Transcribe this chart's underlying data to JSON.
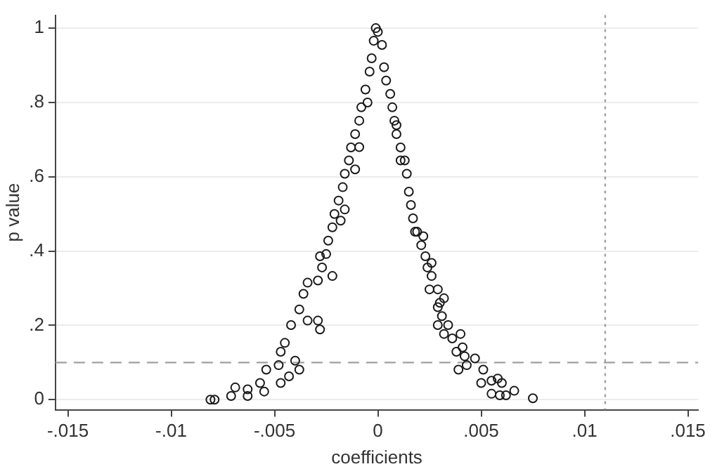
{
  "chart_data": {
    "type": "scatter",
    "xlabel": "coefficients",
    "ylabel": "p value",
    "marker": "circle",
    "grid": "y",
    "legend": false,
    "xlim": [
      -0.0156,
      0.0155
    ],
    "ylim": [
      -0.027,
      1.035
    ],
    "xticks": [
      {
        "value": -0.015,
        "label": "-.015"
      },
      {
        "value": -0.01,
        "label": "-.01"
      },
      {
        "value": -0.005,
        "label": "-.005"
      },
      0,
      {
        "value": 0.005,
        "label": ".005"
      },
      {
        "value": 0.01,
        "label": ".01"
      },
      {
        "value": 0.015,
        "label": ".015"
      }
    ],
    "yticks": [
      0,
      {
        "value": 0.2,
        "label": ".2"
      },
      {
        "value": 0.4,
        "label": ".4"
      },
      {
        "value": 0.6,
        "label": ".6"
      },
      {
        "value": 0.8,
        "label": ".8"
      },
      1
    ],
    "ref_lines": [
      {
        "axis": "y",
        "value": 0.1,
        "color": "#a0a0a0",
        "line_style": "dashed"
      },
      {
        "axis": "x",
        "value": 0.011,
        "color": "#a0a0a0",
        "line_style": "dotted"
      }
    ],
    "series": [
      {
        "color": "#1a1a1a",
        "x": [
          -0.0001,
          -0.0002,
          -0.0003,
          -0.0004,
          -0.0006,
          -0.0008,
          -0.0009,
          -0.0011,
          -0.0013,
          -0.0014,
          -0.0016,
          -0.0017,
          -0.0019,
          -0.0021,
          -0.0022,
          -0.0024,
          -0.0025,
          -0.0027,
          -0.0029,
          -0.0034,
          -0.0036,
          -0.0038,
          -0.0034,
          -0.0042,
          -0.0045,
          -0.0047,
          -0.0048,
          -0.0054,
          -0.0057,
          -0.0063,
          -0.0069,
          -0.0071,
          -0.0079,
          -0.0081,
          -0.0016,
          -0.0018,
          -0.0028,
          -0.0022,
          -0.0029,
          -0.0028,
          -0.004,
          -0.0043,
          -0.0038,
          -0.0047,
          -0.0055,
          -0.0063,
          -0.0011,
          -0.0009,
          -0.0005,
          0.0,
          0.0002,
          0.0003,
          0.0004,
          0.0006,
          0.0007,
          0.0008,
          0.0009,
          0.0011,
          0.0013,
          0.0014,
          0.0015,
          0.0016,
          0.0017,
          0.0018,
          0.0021,
          0.0023,
          0.0024,
          0.0026,
          0.0029,
          0.003,
          0.0031,
          0.0029,
          0.0034,
          0.0036,
          0.0041,
          0.0042,
          0.0047,
          0.0039,
          0.0051,
          0.005,
          0.0055,
          0.0058,
          0.006,
          0.0055,
          0.0059,
          0.0062,
          0.0066,
          0.0075,
          0.0019,
          0.0022,
          0.0026,
          0.0025,
          0.0032,
          0.0029,
          0.0032,
          0.004,
          0.0038,
          0.0043,
          0.0009,
          0.0011
        ],
        "values": [
          1.0,
          0.966,
          0.919,
          0.883,
          0.835,
          0.787,
          0.751,
          0.715,
          0.679,
          0.644,
          0.608,
          0.572,
          0.536,
          0.5,
          0.464,
          0.428,
          0.392,
          0.356,
          0.321,
          0.315,
          0.285,
          0.243,
          0.213,
          0.201,
          0.153,
          0.129,
          0.093,
          0.081,
          0.045,
          0.028,
          0.033,
          0.01,
          0.0,
          0.0,
          0.512,
          0.482,
          0.386,
          0.333,
          0.213,
          0.189,
          0.105,
          0.063,
          0.081,
          0.045,
          0.022,
          0.01,
          0.62,
          0.68,
          0.8,
          0.99,
          0.955,
          0.895,
          0.859,
          0.823,
          0.787,
          0.751,
          0.715,
          0.679,
          0.644,
          0.608,
          0.56,
          0.524,
          0.488,
          0.452,
          0.416,
          0.386,
          0.356,
          0.333,
          0.297,
          0.261,
          0.225,
          0.201,
          0.201,
          0.165,
          0.141,
          0.117,
          0.111,
          0.081,
          0.081,
          0.045,
          0.051,
          0.057,
          0.045,
          0.016,
          0.012,
          0.012,
          0.024,
          0.004,
          0.452,
          0.44,
          0.368,
          0.297,
          0.273,
          0.249,
          0.177,
          0.177,
          0.129,
          0.093,
          0.739,
          0.644
        ]
      }
    ]
  }
}
